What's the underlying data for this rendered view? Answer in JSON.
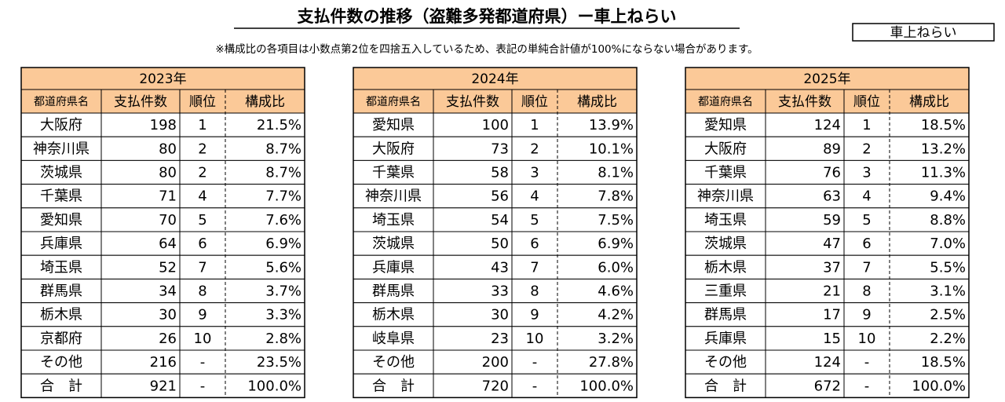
{
  "header": {
    "title": "支払件数の推移（盗難多発都道府県）ー車上ねらい",
    "tag": "車上ねらい",
    "note": "※構成比の各項目は小数点第2位を四捨五入しているため、表記の単純合計値が100%にならない場合があります。"
  },
  "tables": [
    {
      "year": "2023年",
      "headers": [
        "都道府県名",
        "支払件数",
        "順位",
        "構成比"
      ],
      "rows": [
        [
          "大阪府",
          198,
          1,
          "21.5%"
        ],
        [
          "神奈川県",
          80,
          2,
          "8.7%"
        ],
        [
          "茨城県",
          80,
          2,
          "8.7%"
        ],
        [
          "千葉県",
          71,
          4,
          "7.7%"
        ],
        [
          "愛知県",
          70,
          5,
          "7.6%"
        ],
        [
          "兵庫県",
          64,
          6,
          "6.9%"
        ],
        [
          "埼玉県",
          52,
          7,
          "5.6%"
        ],
        [
          "群馬県",
          34,
          8,
          "3.7%"
        ],
        [
          "栃木県",
          30,
          9,
          "3.3%"
        ],
        [
          "京都府",
          26,
          10,
          "2.8%"
        ],
        [
          "その他",
          216,
          "-",
          "23.5%"
        ],
        [
          "合　計",
          921,
          "-",
          "100.0%"
        ]
      ]
    },
    {
      "year": "2024年",
      "headers": [
        "都道府県名",
        "支払件数",
        "順位",
        "構成比"
      ],
      "rows": [
        [
          "愛知県",
          100,
          1,
          "13.9%"
        ],
        [
          "大阪府",
          73,
          2,
          "10.1%"
        ],
        [
          "千葉県",
          58,
          3,
          "8.1%"
        ],
        [
          "神奈川県",
          56,
          4,
          "7.8%"
        ],
        [
          "埼玉県",
          54,
          5,
          "7.5%"
        ],
        [
          "茨城県",
          50,
          6,
          "6.9%"
        ],
        [
          "兵庫県",
          43,
          7,
          "6.0%"
        ],
        [
          "群馬県",
          33,
          8,
          "4.6%"
        ],
        [
          "栃木県",
          30,
          9,
          "4.2%"
        ],
        [
          "岐阜県",
          23,
          10,
          "3.2%"
        ],
        [
          "その他",
          200,
          "-",
          "27.8%"
        ],
        [
          "合　計",
          720,
          "-",
          "100.0%"
        ]
      ]
    },
    {
      "year": "2025年",
      "headers": [
        "都道府県名",
        "支払件数",
        "順位",
        "構成比"
      ],
      "rows": [
        [
          "愛知県",
          124,
          1,
          "18.5%"
        ],
        [
          "大阪府",
          89,
          2,
          "13.2%"
        ],
        [
          "千葉県",
          76,
          3,
          "11.3%"
        ],
        [
          "神奈川県",
          63,
          4,
          "9.4%"
        ],
        [
          "埼玉県",
          59,
          5,
          "8.8%"
        ],
        [
          "茨城県",
          47,
          6,
          "7.0%"
        ],
        [
          "栃木県",
          37,
          7,
          "5.5%"
        ],
        [
          "三重県",
          21,
          8,
          "3.1%"
        ],
        [
          "群馬県",
          17,
          9,
          "2.5%"
        ],
        [
          "兵庫県",
          15,
          10,
          "2.2%"
        ],
        [
          "その他",
          124,
          "-",
          "18.5%"
        ],
        [
          "合　計",
          672,
          "-",
          "100.0%"
        ]
      ]
    }
  ]
}
